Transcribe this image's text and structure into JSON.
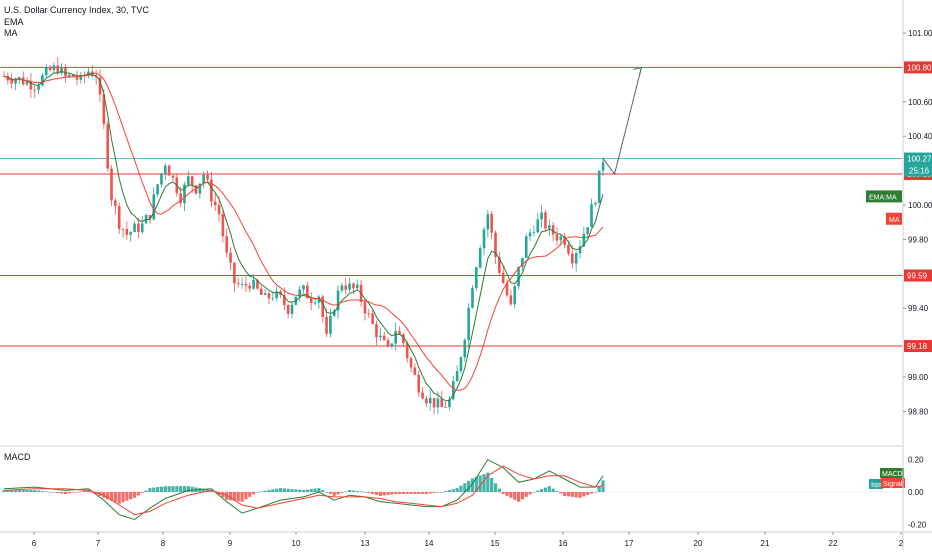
{
  "header": {
    "title": "U.S. Dollar Currency Index, 30, TVC",
    "indicator_1": "EMA",
    "indicator_2": "MA",
    "macd_label": "MACD"
  },
  "colors": {
    "up": "#26a69a",
    "down": "#ef5350",
    "ema": "#2e7d32",
    "ma": "#f44336",
    "level_line": "#e53935",
    "price_line": "#26a69a",
    "arrow": "#5b6270",
    "axis_text": "#131722",
    "grid": "#e6e6e6"
  },
  "chart_data": [
    {
      "type": "candlestick",
      "title": "U.S. Dollar Currency Index, 30, TVC",
      "x_ticks": [
        "6",
        "7",
        "8",
        "9",
        "10",
        "13",
        "14",
        "15",
        "16",
        "17",
        "20",
        "21",
        "22",
        "2"
      ],
      "y_ticks": [
        "101.00",
        "100.60",
        "100.40",
        "100.00",
        "99.80",
        "99.40",
        "99.00",
        "98.80"
      ],
      "ylim": [
        98.67,
        101.25
      ],
      "series_names": [
        "EMA",
        "MA"
      ],
      "price_path": [
        [
          0,
          100.75
        ],
        [
          2,
          100.73
        ],
        [
          4,
          100.7
        ],
        [
          6,
          100.78
        ],
        [
          7,
          100.8
        ],
        [
          8,
          100.74
        ],
        [
          9,
          100.75
        ],
        [
          10,
          100.72
        ],
        [
          11,
          100.78
        ],
        [
          12,
          100.76
        ],
        [
          13,
          100.45
        ],
        [
          14,
          100.05
        ],
        [
          15,
          99.9
        ],
        [
          16,
          99.83
        ],
        [
          17,
          99.86
        ],
        [
          18,
          99.88
        ],
        [
          19,
          99.95
        ],
        [
          20,
          100.12
        ],
        [
          21,
          100.25
        ],
        [
          22,
          100.15
        ],
        [
          23,
          100.05
        ],
        [
          24,
          100.15
        ],
        [
          25,
          100.1
        ],
        [
          26,
          100.18
        ],
        [
          27,
          100.05
        ],
        [
          28,
          99.95
        ],
        [
          29,
          99.7
        ],
        [
          30,
          99.55
        ],
        [
          31,
          99.52
        ],
        [
          32,
          99.55
        ],
        [
          33,
          99.5
        ],
        [
          34,
          99.45
        ],
        [
          35,
          99.48
        ],
        [
          36,
          99.45
        ],
        [
          37,
          99.4
        ],
        [
          38,
          99.48
        ],
        [
          39,
          99.5
        ],
        [
          40,
          99.46
        ],
        [
          41,
          99.48
        ],
        [
          42,
          99.22
        ],
        [
          43,
          99.42
        ],
        [
          44,
          99.55
        ],
        [
          45,
          99.52
        ],
        [
          46,
          99.5
        ],
        [
          47,
          99.4
        ],
        [
          48,
          99.3
        ],
        [
          49,
          99.22
        ],
        [
          50,
          99.15
        ],
        [
          51,
          99.28
        ],
        [
          52,
          99.2
        ],
        [
          53,
          99.05
        ],
        [
          54,
          98.95
        ],
        [
          55,
          98.88
        ],
        [
          56,
          98.85
        ],
        [
          57,
          98.82
        ],
        [
          58,
          98.86
        ],
        [
          59,
          99.02
        ],
        [
          60,
          99.25
        ],
        [
          61,
          99.55
        ],
        [
          62,
          99.78
        ],
        [
          63,
          99.95
        ],
        [
          64,
          99.7
        ],
        [
          65,
          99.55
        ],
        [
          66,
          99.4
        ],
        [
          67,
          99.62
        ],
        [
          68,
          99.8
        ],
        [
          69,
          99.88
        ],
        [
          70,
          99.92
        ],
        [
          71,
          99.85
        ],
        [
          72,
          99.82
        ],
        [
          73,
          99.8
        ],
        [
          74,
          99.7
        ],
        [
          75,
          99.78
        ],
        [
          76,
          99.9
        ],
        [
          77,
          100.05
        ],
        [
          78,
          100.27
        ]
      ],
      "x_range": [
        0,
        78
      ],
      "levels": [
        {
          "value": 100.8,
          "label": "100.80"
        },
        {
          "value": 100.18,
          "label": "100.18"
        },
        {
          "value": 99.59,
          "label": "99.59"
        },
        {
          "value": 99.18,
          "label": "99.18"
        }
      ],
      "last_price": {
        "value": 100.27,
        "label": "100.27",
        "countdown": "25:16"
      },
      "badges": [
        {
          "label": "EMA:MA",
          "value": 100.05
        },
        {
          "label": "MA",
          "value": 99.92
        }
      ],
      "arrow": [
        {
          "x": 78,
          "y": 100.27
        },
        {
          "x": 79.5,
          "y": 100.18
        },
        {
          "x": 83,
          "y": 100.8
        }
      ]
    },
    {
      "type": "macd",
      "title": "MACD",
      "y_ticks": [
        "0.20",
        "0.00",
        "-0.20"
      ],
      "ylim": [
        -0.24,
        0.24
      ],
      "legend": [
        "MACD",
        "Histogram",
        "Signal"
      ],
      "macd_path": [
        [
          0,
          0.02
        ],
        [
          4,
          0.03
        ],
        [
          8,
          0.01
        ],
        [
          11,
          0.02
        ],
        [
          13,
          -0.05
        ],
        [
          15,
          -0.14
        ],
        [
          17,
          -0.17
        ],
        [
          19,
          -0.1
        ],
        [
          21,
          -0.04
        ],
        [
          24,
          0.01
        ],
        [
          27,
          0.02
        ],
        [
          29,
          -0.06
        ],
        [
          31,
          -0.13
        ],
        [
          33,
          -0.1
        ],
        [
          36,
          -0.05
        ],
        [
          39,
          -0.03
        ],
        [
          41,
          0.0
        ],
        [
          43,
          -0.05
        ],
        [
          45,
          -0.02
        ],
        [
          47,
          -0.03
        ],
        [
          49,
          -0.06
        ],
        [
          51,
          -0.07
        ],
        [
          53,
          -0.08
        ],
        [
          55,
          -0.09
        ],
        [
          57,
          -0.09
        ],
        [
          59,
          -0.05
        ],
        [
          61,
          0.05
        ],
        [
          63,
          0.2
        ],
        [
          65,
          0.15
        ],
        [
          67,
          0.06
        ],
        [
          69,
          0.08
        ],
        [
          71,
          0.13
        ],
        [
          73,
          0.08
        ],
        [
          75,
          0.03
        ],
        [
          77,
          0.03
        ],
        [
          78,
          0.1
        ]
      ],
      "signal_path": [
        [
          0,
          0.01
        ],
        [
          4,
          0.02
        ],
        [
          8,
          0.02
        ],
        [
          11,
          0.01
        ],
        [
          13,
          -0.02
        ],
        [
          15,
          -0.08
        ],
        [
          17,
          -0.14
        ],
        [
          19,
          -0.12
        ],
        [
          21,
          -0.07
        ],
        [
          24,
          -0.02
        ],
        [
          27,
          0.01
        ],
        [
          29,
          -0.02
        ],
        [
          31,
          -0.08
        ],
        [
          33,
          -0.1
        ],
        [
          36,
          -0.07
        ],
        [
          39,
          -0.04
        ],
        [
          41,
          -0.02
        ],
        [
          43,
          -0.03
        ],
        [
          45,
          -0.03
        ],
        [
          47,
          -0.03
        ],
        [
          49,
          -0.04
        ],
        [
          51,
          -0.06
        ],
        [
          53,
          -0.07
        ],
        [
          55,
          -0.08
        ],
        [
          57,
          -0.09
        ],
        [
          59,
          -0.07
        ],
        [
          61,
          -0.02
        ],
        [
          63,
          0.1
        ],
        [
          65,
          0.16
        ],
        [
          67,
          0.11
        ],
        [
          69,
          0.08
        ],
        [
          71,
          0.1
        ],
        [
          73,
          0.1
        ],
        [
          75,
          0.06
        ],
        [
          77,
          0.03
        ],
        [
          78,
          0.04
        ]
      ]
    }
  ]
}
